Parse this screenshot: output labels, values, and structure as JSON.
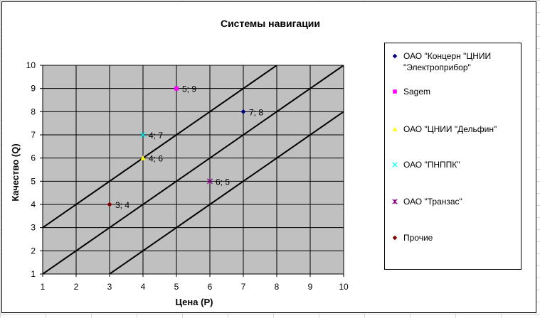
{
  "chart_data": {
    "type": "scatter",
    "title": "Системы навигации",
    "xlabel": "Цена (P)",
    "ylabel": "Качество (Q)",
    "xlim": [
      1,
      10
    ],
    "ylim": [
      1,
      10
    ],
    "x_ticks": [
      "1",
      "2",
      "3",
      "4",
      "5",
      "6",
      "7",
      "8",
      "9",
      "10"
    ],
    "y_ticks": [
      "1",
      "2",
      "3",
      "4",
      "5",
      "6",
      "7",
      "8",
      "9",
      "10"
    ],
    "grid": true,
    "plot_background": "#c0c0c0",
    "legend_position": "right",
    "series": [
      {
        "name": "ОАО \"Концерн \"ЦНИИ \"Электроприбор\"",
        "x": 7,
        "y": 8,
        "label": "7; 8",
        "marker": "diamond",
        "color": "#000080"
      },
      {
        "name": "Sagem",
        "x": 5,
        "y": 9,
        "label": "5; 9",
        "marker": "square",
        "color": "#ff00ff"
      },
      {
        "name": "ОАО \"ЦНИИ \"Дельфин\"",
        "x": 4,
        "y": 6,
        "label": "4; 6",
        "marker": "triangle",
        "color": "#ffff00"
      },
      {
        "name": "ОАО \"ПНППК\"",
        "x": 4,
        "y": 7,
        "label": "4; 7",
        "marker": "x",
        "color": "#00ffff"
      },
      {
        "name": "ОАО \"Транзас\"",
        "x": 6,
        "y": 5,
        "label": "6; 5",
        "marker": "star",
        "color": "#800080"
      },
      {
        "name": "Прочие",
        "x": 3,
        "y": 4,
        "label": "3; 4",
        "marker": "diamond",
        "color": "#800000"
      }
    ],
    "reference_lines": [
      {
        "x": [
          1,
          8
        ],
        "y": [
          3,
          10
        ]
      },
      {
        "x": [
          1,
          10
        ],
        "y": [
          1,
          10
        ]
      },
      {
        "x": [
          3,
          10
        ],
        "y": [
          1,
          8
        ]
      }
    ]
  }
}
